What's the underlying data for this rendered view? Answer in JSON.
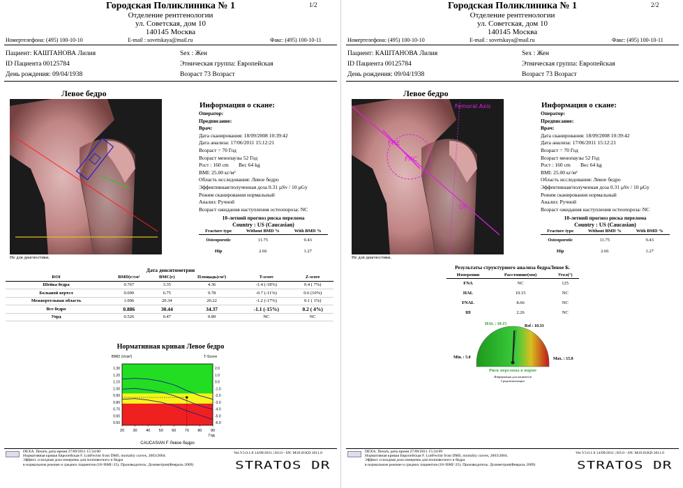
{
  "header": {
    "clinic_name": "Городская Поликлиника № 1",
    "department": "Отделение рентгенологии",
    "street": "ул. Советская, дом 10",
    "city": "140145 Москва",
    "phone": "Номертелефона: (495) 100-10-10",
    "email": "E-mail : sovetskaya@mail.ru",
    "fax": "Факс: (495) 100-10-11"
  },
  "pages": [
    "1/2",
    "2/2"
  ],
  "patient": {
    "name": "Пациент: КАШТАНОВА Лилия",
    "id": "ID Пациента 00125784",
    "dob": "День рождения: 09/04/1938",
    "sex": "Sex : Жен",
    "ethnic": "Этническая группа: Европейская",
    "age": "Возраст 73 Возраст"
  },
  "scan_title": "Левое бедро",
  "no_diag": "Не для диагностики.",
  "scan_info": {
    "title": "Информация о скане:",
    "lines": [
      "Оператор:",
      "Предписание:",
      "Врач:",
      "Дата сканирования: 18/09/2008 10:39:42",
      "Дата анализа: 17/06/2011 15:12:21",
      "Возраст = 70 Год",
      "Возраст менопаузы 52 Год",
      "Рост : 160 cm",
      "BMI: 25.00 кг/м²",
      "Область исследования: Левое бедро",
      "Эффективная/полученная доза  0.31 µSv / 10 µGy",
      "Режим сканирования нормальный",
      "Анализ: Ручной",
      "Возраст ожидания наступления остеопороза:   NC"
    ],
    "weight": "Вес 64 kg"
  },
  "fracture_risk": {
    "title": "10-летний прогноз риска перелома",
    "country": "Country : US (Caucasian)",
    "headers": [
      "Fracture type",
      "Without BMD %",
      "With BMD %"
    ],
    "rows": [
      [
        "Osteoporotic",
        "11.75",
        "9.43"
      ],
      [
        "Hip",
        "2.66",
        "1.27"
      ]
    ]
  },
  "densitometry": {
    "title": "Дата денситометрии",
    "headers": [
      "ROI",
      "BMD(г/см²",
      "BMC(г)",
      "Площадь(см²)",
      "T-score",
      "Z-score"
    ],
    "rows": [
      [
        "Шейка бедра",
        "0.767",
        "3.35",
        "4.36",
        "-1.4 (-18%)",
        "0.4 ( 7%)"
      ],
      [
        "Большой вертел",
        "0.690",
        "6.75",
        "9.78",
        "-0.7 (-11%)",
        "0.6 (10%)"
      ],
      [
        "Межвертельная область",
        "1.006",
        "20.34",
        "20.22",
        "-1.2 (-17%)",
        "0.1 ( 1%)"
      ],
      [
        "Все бедро",
        "0.886",
        "30.44",
        "34.37",
        "-1.1 (-15%)",
        "0.2 ( 4%)"
      ],
      [
        "Уорд",
        "0.526",
        "0.47",
        "0.89",
        "NC",
        "NC"
      ]
    ]
  },
  "chart_data": {
    "type": "line",
    "title": "Нормативная кривая Левое бедро",
    "ylabel": "BMD (г/см²)",
    "y2label": "T-Score",
    "xlabel": "Год",
    "caption": "CAUCASIAN F Левое бедро",
    "x_ticks": [
      "20",
      "30",
      "40",
      "50",
      "60",
      "70",
      "80",
      "90"
    ],
    "y_ticks": [
      "1.30",
      "1.20",
      "1.10",
      "1.00",
      "0.90",
      "0.80",
      "0.70",
      "0.60",
      "0.50"
    ],
    "y2_ticks": [
      "2.0",
      "1.0",
      "0.0",
      "-1.0",
      "-2.0",
      "-3.0",
      "-4.0",
      "-5.0",
      "-6.0"
    ],
    "xlim": [
      20,
      90
    ],
    "ylim": [
      0.5,
      1.35
    ],
    "bands": [
      {
        "name": "normal",
        "from": 0.94,
        "to": 1.35,
        "color": "#22dd22"
      },
      {
        "name": "osteopenia",
        "from": 0.8,
        "to": 0.94,
        "color": "#f5f51a"
      },
      {
        "name": "osteoporosis",
        "from": 0.5,
        "to": 0.8,
        "color": "#f02020"
      }
    ],
    "series": [
      {
        "values": [
          [
            20,
            1.14
          ],
          [
            30,
            1.15
          ],
          [
            40,
            1.14
          ],
          [
            50,
            1.11
          ],
          [
            60,
            1.06
          ],
          [
            70,
            0.98
          ],
          [
            80,
            0.91
          ],
          [
            90,
            0.86
          ]
        ],
        "color": "#1a1a8c",
        "dash": false
      },
      {
        "values": [
          [
            20,
            1.0
          ],
          [
            30,
            1.01
          ],
          [
            40,
            0.99
          ],
          [
            50,
            0.96
          ],
          [
            60,
            0.91
          ],
          [
            70,
            0.84
          ],
          [
            80,
            0.77
          ],
          [
            90,
            0.72
          ]
        ],
        "color": "#1a1a8c",
        "dash": false
      },
      {
        "values": [
          [
            20,
            0.86
          ],
          [
            30,
            0.87
          ],
          [
            40,
            0.85
          ],
          [
            50,
            0.82
          ],
          [
            60,
            0.77
          ],
          [
            70,
            0.7
          ],
          [
            80,
            0.64
          ],
          [
            90,
            0.58
          ]
        ],
        "color": "#1a1a8c",
        "dash": false
      }
    ],
    "patient_point": {
      "x": 70,
      "y": 0.886
    }
  },
  "structural": {
    "title": "Результаты структурного анализа бедраЛевое Б.",
    "headers": [
      "Измерения",
      "Расстояние(мм)",
      "Угол(°)"
    ],
    "rows": [
      [
        "FNA",
        "NC",
        "125"
      ],
      [
        "HAL",
        "10.15",
        "NC"
      ],
      [
        "FNAL",
        "8.66",
        "NC"
      ],
      [
        "IH",
        "2.26",
        "NC"
      ]
    ]
  },
  "gauge": {
    "hal_label": "HAL : 10.15",
    "ref_label": "Ref : 10.33",
    "min_label": "Мin. : 5.0",
    "max_label": "Max. : 15.0",
    "min": 5.0,
    "max": 15.0,
    "value": 10.15,
    "ref": 10.33,
    "caption": "Риск перелома в норме",
    "note1": "Информация для пациентов",
    "note2": "Средиземноморье"
  },
  "image_labels": {
    "femoral_axis": "Femoral Axis",
    "fhe": "FHE",
    "fhc": "FHC",
    "df": "DF"
  },
  "footer": {
    "line1a": "DEXA. Печать даты время 27/09/2011 15:34:00",
    "line1b": "DEXA. Печать даты время 27/09/2011 15:34:09",
    "line2": "Нормативная кривая Европейская F. LuttFectist from DMS, mortality curves, 2003/2004.",
    "line3": "Эффект. и входная доза измерены для полновесного и бедра",
    "line4": "в нормальном режиме и средних пациентов (18<BMI<25). Производитель: Дозиметрия(Февраль 2009)",
    "ver1": "Ver.V3.0.1.8 14/09/2011 | Н3.0 - SN: M10.01KD.1011.0",
    "ver2": "Ver.V3.0.1.8 14/09/2011 | Н3.0 - SN: M10.01KD.1011.0",
    "brand": "STRATOS DR"
  }
}
